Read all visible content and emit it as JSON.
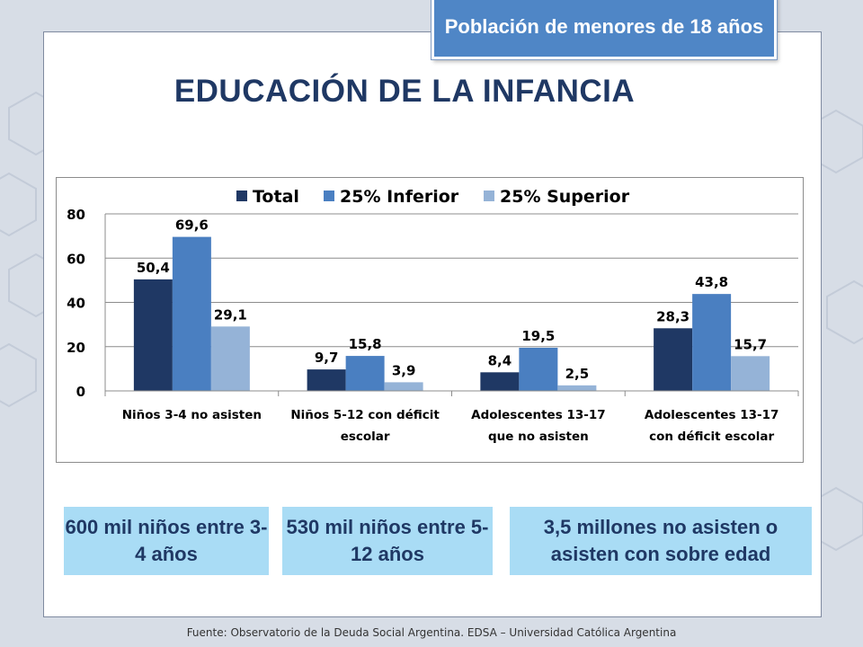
{
  "banner": "Población de menores de 18 años",
  "title": "EDUCACIÓN DE LA INFANCIA",
  "chart_data": {
    "type": "bar",
    "categories": [
      "Niños 3-4 no asisten",
      "Niños 5-12 con déficit escolar",
      "Adolescentes 13-17 que no asisten",
      "Adolescentes 13-17 con déficit escolar"
    ],
    "category_lines": [
      [
        "Niños 3-4 no asisten"
      ],
      [
        "Niños 5-12 con déficit",
        "escolar"
      ],
      [
        "Adolescentes 13-17",
        "que no asisten"
      ],
      [
        "Adolescentes 13-17",
        "con déficit escolar"
      ]
    ],
    "series": [
      {
        "name": "Total",
        "color": "#1f3864",
        "values": [
          50.4,
          9.7,
          8.4,
          28.3
        ],
        "labels": [
          "50,4",
          "9,7",
          "8,4",
          "28,3"
        ]
      },
      {
        "name": "25% Inferior",
        "color": "#4a7fc1",
        "values": [
          69.6,
          15.8,
          19.5,
          43.8
        ],
        "labels": [
          "69,6",
          "15,8",
          "19,5",
          "43,8"
        ]
      },
      {
        "name": "25% Superior",
        "color": "#95b3d7",
        "values": [
          29.1,
          3.9,
          2.5,
          15.7
        ],
        "labels": [
          "29,1",
          "3,9",
          "2,5",
          "15,7"
        ]
      }
    ],
    "yticks": [
      "0",
      "20",
      "40",
      "60",
      "80"
    ],
    "ylim": [
      0,
      80
    ],
    "legend_position": "top",
    "grid": true
  },
  "info_boxes": [
    "600 mil niños entre 3-4 años",
    "530 mil niños entre 5-12 años",
    "3,5 millones no asisten o asisten con sobre edad"
  ],
  "source": "Fuente:  Observatorio de  la Deuda Social Argentina. EDSA  – Universidad Católica Argentina"
}
